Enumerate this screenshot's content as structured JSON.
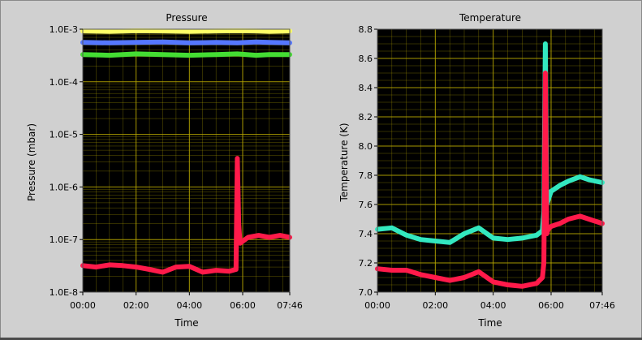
{
  "chart_data": [
    {
      "type": "line",
      "title": "Pressure",
      "xlabel": "Time",
      "ylabel": "Pressure (mbar)",
      "y_scale": "log",
      "ylim": [
        1e-08,
        0.001
      ],
      "x_tick_labels": [
        "00:00",
        "02:00",
        "04:00",
        "06:00",
        "07:46"
      ],
      "x_tick_hours": [
        0,
        2,
        4,
        6,
        7.7667
      ],
      "y_tick_labels": [
        "1.0E-8",
        "1.0E-7",
        "1.0E-6",
        "1.0E-5",
        "1.0E-4",
        "1.0E-3"
      ],
      "y_tick_values": [
        1e-08,
        1e-07,
        1e-06,
        1e-05,
        0.0001,
        0.001
      ],
      "background": "#000000",
      "grid": true,
      "grid_color": "#b8a800",
      "series": [
        {
          "color": "#ffff66",
          "x": [
            0,
            1,
            2,
            3,
            4,
            5,
            5.8,
            6.5,
            7,
            7.7667
          ],
          "y": [
            0.00092,
            0.00091,
            0.00093,
            0.00092,
            0.00091,
            0.00092,
            0.00093,
            0.00092,
            0.00091,
            0.00092
          ]
        },
        {
          "color": "#5577ff",
          "x": [
            0,
            1,
            2,
            3,
            4,
            5,
            5.8,
            6.5,
            7,
            7.7667
          ],
          "y": [
            0.00056,
            0.00055,
            0.00056,
            0.00057,
            0.00055,
            0.00056,
            0.00055,
            0.00057,
            0.00056,
            0.00055
          ]
        },
        {
          "color": "#44dd33",
          "x": [
            0,
            1,
            2,
            3,
            4,
            5,
            5.8,
            6.5,
            7,
            7.7667
          ],
          "y": [
            0.00033,
            0.00032,
            0.00034,
            0.00033,
            0.00032,
            0.00033,
            0.00034,
            0.00032,
            0.00033,
            0.00033
          ]
        },
        {
          "color": "#ff1a4a",
          "x": [
            0,
            0.5,
            1,
            1.5,
            2,
            2.5,
            3,
            3.5,
            4,
            4.5,
            5,
            5.5,
            5.75,
            5.8,
            5.85,
            5.9,
            6.2,
            6.6,
            7,
            7.4,
            7.7667
          ],
          "y": [
            3.2e-08,
            3e-08,
            3.3e-08,
            3.2e-08,
            3e-08,
            2.7e-08,
            2.4e-08,
            3e-08,
            3.1e-08,
            2.4e-08,
            2.6e-08,
            2.5e-08,
            2.7e-08,
            3.5e-06,
            2e-07,
            8.5e-08,
            1.1e-07,
            1.2e-07,
            1.1e-07,
            1.2e-07,
            1.1e-07
          ]
        }
      ]
    },
    {
      "type": "line",
      "title": "Temperature",
      "xlabel": "Time",
      "ylabel": "Temperature (K)",
      "ylim": [
        7.0,
        8.8
      ],
      "x_tick_labels": [
        "00:00",
        "02:00",
        "04:00",
        "06:00",
        "07:46"
      ],
      "x_tick_hours": [
        0,
        2,
        4,
        6,
        7.7667
      ],
      "y_tick_labels": [
        "7.0",
        "7.2",
        "7.4",
        "7.6",
        "7.8",
        "8.0",
        "8.2",
        "8.4",
        "8.6",
        "8.8"
      ],
      "y_tick_values": [
        7.0,
        7.2,
        7.4,
        7.6,
        7.8,
        8.0,
        8.2,
        8.4,
        8.6,
        8.8
      ],
      "background": "#000000",
      "grid": true,
      "grid_color": "#b8a800",
      "series": [
        {
          "color": "#33e8c0",
          "x": [
            0,
            0.5,
            1,
            1.5,
            2,
            2.5,
            3,
            3.5,
            4,
            4.5,
            5,
            5.5,
            5.7,
            5.75,
            5.8,
            5.85,
            5.9,
            6.0,
            6.3,
            6.6,
            7,
            7.3,
            7.7667
          ],
          "y": [
            7.43,
            7.44,
            7.39,
            7.36,
            7.35,
            7.34,
            7.4,
            7.44,
            7.37,
            7.36,
            7.37,
            7.39,
            7.42,
            7.55,
            8.7,
            7.6,
            7.63,
            7.69,
            7.73,
            7.76,
            7.79,
            7.77,
            7.75
          ]
        },
        {
          "color": "#ff1a4a",
          "x": [
            0,
            0.5,
            1,
            1.5,
            2,
            2.5,
            3,
            3.5,
            4,
            4.5,
            5,
            5.5,
            5.7,
            5.75,
            5.8,
            5.85,
            5.9,
            6.0,
            6.3,
            6.6,
            7,
            7.3,
            7.7667
          ],
          "y": [
            7.16,
            7.15,
            7.15,
            7.12,
            7.1,
            7.08,
            7.1,
            7.14,
            7.07,
            7.05,
            7.04,
            7.06,
            7.1,
            7.2,
            8.5,
            7.4,
            7.43,
            7.45,
            7.47,
            7.5,
            7.52,
            7.5,
            7.47
          ]
        }
      ]
    }
  ]
}
